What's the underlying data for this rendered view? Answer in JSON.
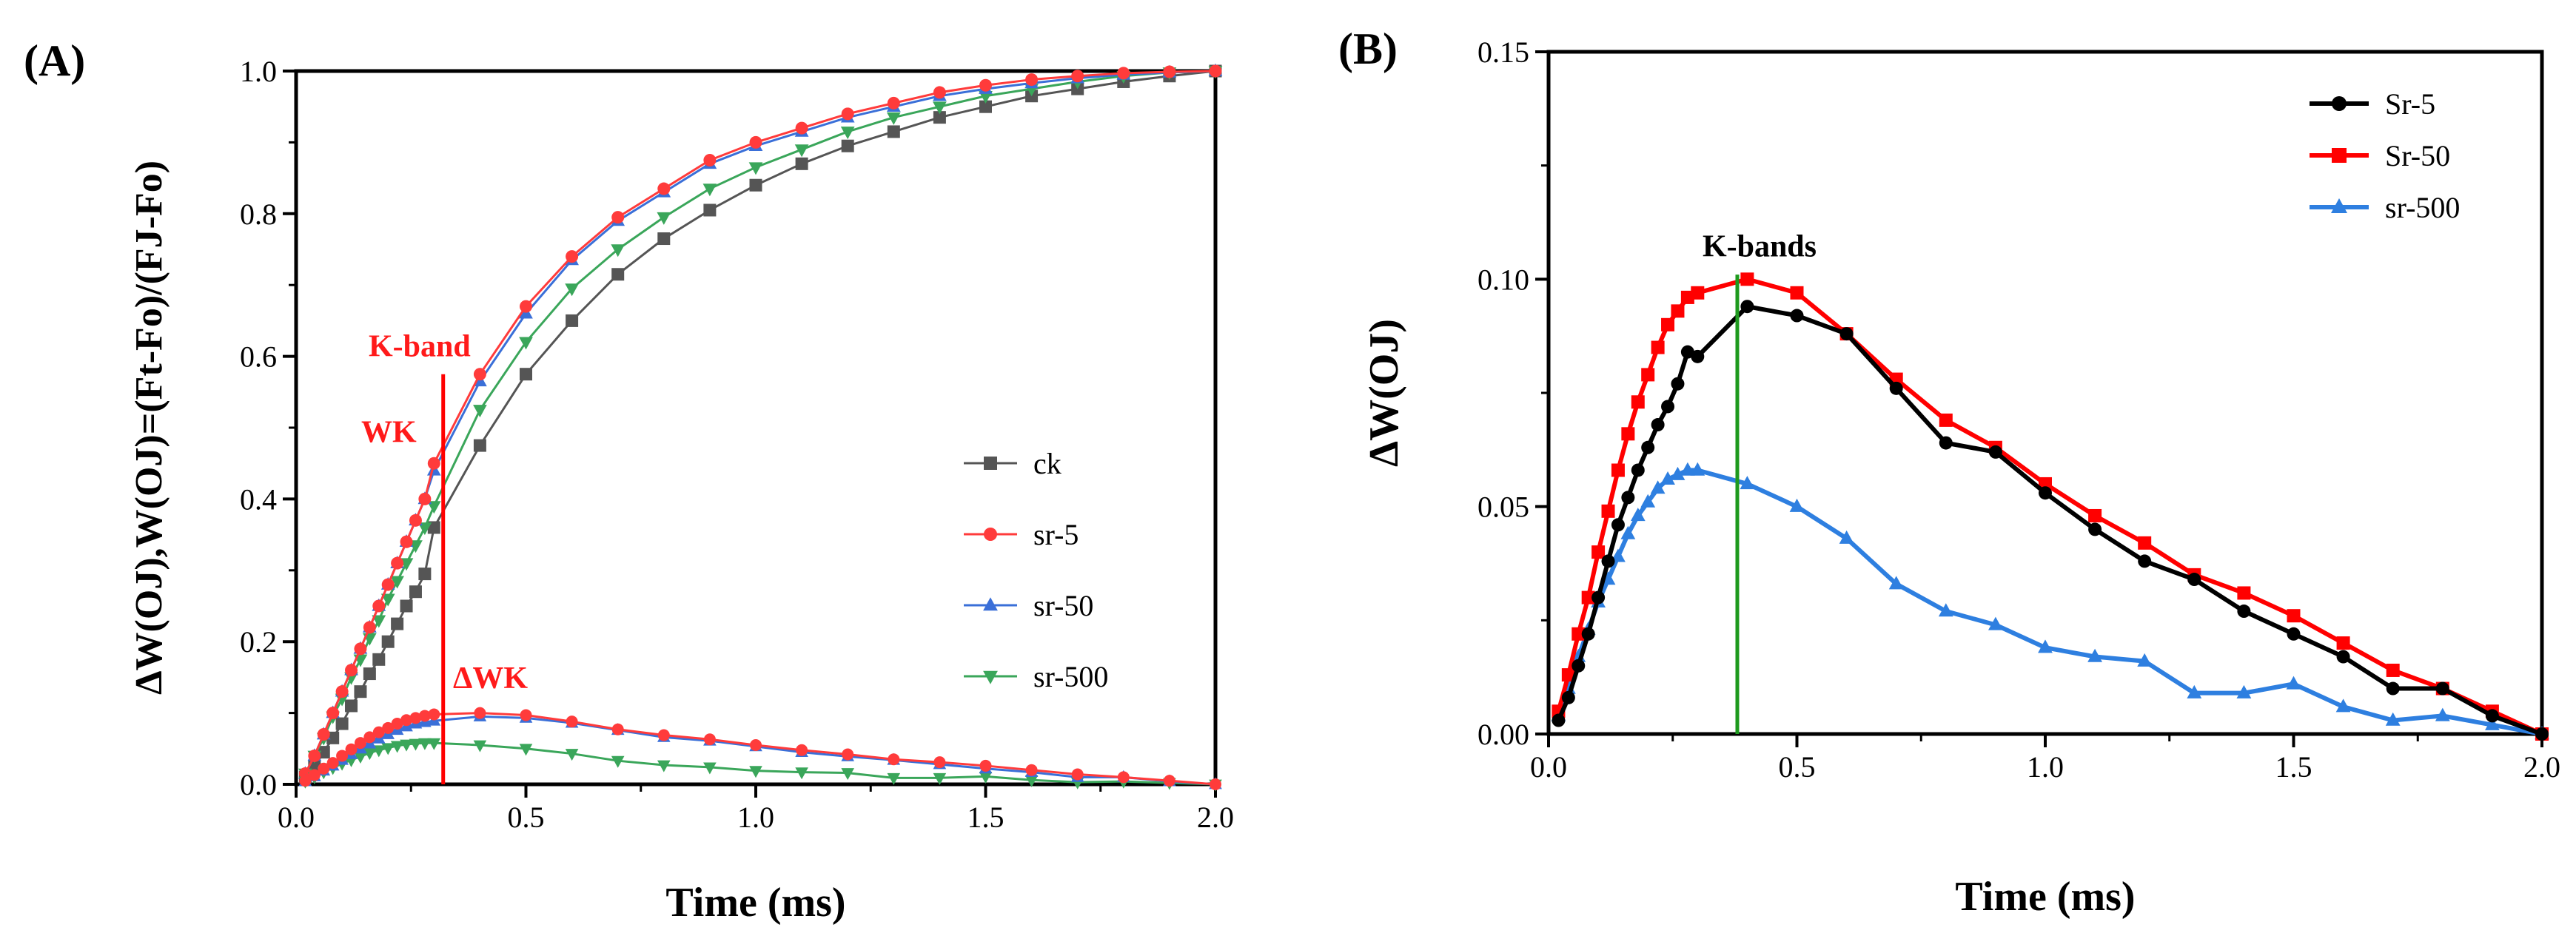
{
  "colors": {
    "ck": "#555555",
    "sr5_A": "#ff3b3b",
    "sr50_A": "#3a6fd8",
    "sr500_A": "#3aa65a",
    "Sr5_B": "#000000",
    "Sr50_B": "#ff0000",
    "sr500_B": "#2e7fe0",
    "kline_A": "#ff0000",
    "kline_B": "#1e9a1e"
  },
  "chart_data": [
    {
      "type": "line",
      "panel_label": "(A)",
      "xlabel": "Time (ms)",
      "ylabel": "ΔW(OJ),W(OJ)=(Ft-Fo)/(FJ-Fo)",
      "xlim": [
        0,
        2.0
      ],
      "ylim": [
        0,
        1.0
      ],
      "xticks": [
        "0.0",
        "0.5",
        "1.0",
        "1.5",
        "2.0"
      ],
      "yticks": [
        "0.0",
        "0.2",
        "0.4",
        "0.6",
        "0.8",
        "1.0"
      ],
      "xtick_values": [
        0,
        0.5,
        1.0,
        1.5,
        2.0
      ],
      "ytick_values": [
        0,
        0.2,
        0.4,
        0.6,
        0.8,
        1.0
      ],
      "legend_position": "center-right",
      "annotations": {
        "k_band_label": "K-band",
        "wk_label": "WK",
        "dwk_label": "ΔWK",
        "k_band_time": 0.32
      },
      "x": [
        0.02,
        0.04,
        0.06,
        0.08,
        0.1,
        0.12,
        0.14,
        0.16,
        0.18,
        0.2,
        0.22,
        0.24,
        0.26,
        0.28,
        0.3,
        0.4,
        0.5,
        0.6,
        0.7,
        0.8,
        0.9,
        1.0,
        1.1,
        1.2,
        1.3,
        1.4,
        1.5,
        1.6,
        1.7,
        1.8,
        1.9,
        2.0
      ],
      "series": [
        {
          "name": "ck",
          "key": "ck",
          "marker": "square",
          "values": [
            0.01,
            0.025,
            0.045,
            0.065,
            0.085,
            0.11,
            0.13,
            0.155,
            0.175,
            0.2,
            0.225,
            0.25,
            0.27,
            0.295,
            0.36,
            0.475,
            0.575,
            0.65,
            0.715,
            0.765,
            0.805,
            0.84,
            0.87,
            0.895,
            0.915,
            0.935,
            0.95,
            0.965,
            0.975,
            0.985,
            0.993,
            1.0
          ]
        },
        {
          "name": "sr-5",
          "key": "sr5_A",
          "marker": "circle",
          "values": [
            0.015,
            0.04,
            0.07,
            0.1,
            0.13,
            0.16,
            0.19,
            0.22,
            0.25,
            0.28,
            0.31,
            0.34,
            0.37,
            0.4,
            0.45,
            0.575,
            0.67,
            0.74,
            0.795,
            0.835,
            0.875,
            0.9,
            0.92,
            0.94,
            0.955,
            0.97,
            0.98,
            0.988,
            0.993,
            0.997,
            0.999,
            1.0
          ]
        },
        {
          "name": "sr-50",
          "key": "sr50_A",
          "marker": "triangle-up",
          "values": [
            0.015,
            0.04,
            0.07,
            0.1,
            0.13,
            0.16,
            0.19,
            0.22,
            0.25,
            0.28,
            0.31,
            0.34,
            0.37,
            0.4,
            0.44,
            0.565,
            0.66,
            0.735,
            0.79,
            0.83,
            0.87,
            0.895,
            0.915,
            0.935,
            0.95,
            0.965,
            0.975,
            0.983,
            0.99,
            0.995,
            0.998,
            1.0
          ]
        },
        {
          "name": "sr-500",
          "key": "sr500_A",
          "marker": "triangle-down",
          "values": [
            0.015,
            0.04,
            0.065,
            0.095,
            0.12,
            0.15,
            0.175,
            0.205,
            0.23,
            0.26,
            0.285,
            0.31,
            0.335,
            0.36,
            0.39,
            0.525,
            0.62,
            0.695,
            0.75,
            0.795,
            0.835,
            0.865,
            0.89,
            0.915,
            0.935,
            0.95,
            0.965,
            0.975,
            0.985,
            0.993,
            0.998,
            1.0
          ]
        }
      ],
      "delta_x": [
        0.02,
        0.04,
        0.06,
        0.08,
        0.1,
        0.12,
        0.14,
        0.16,
        0.18,
        0.2,
        0.22,
        0.24,
        0.26,
        0.28,
        0.3,
        0.4,
        0.5,
        0.6,
        0.7,
        0.8,
        0.9,
        1.0,
        1.1,
        1.2,
        1.3,
        1.4,
        1.5,
        1.6,
        1.7,
        1.8,
        1.9,
        2.0
      ],
      "delta_series": [
        {
          "name": "sr-5",
          "key": "sr5_A",
          "marker": "circle",
          "values": [
            0.005,
            0.013,
            0.022,
            0.03,
            0.04,
            0.049,
            0.058,
            0.066,
            0.073,
            0.079,
            0.085,
            0.09,
            0.093,
            0.096,
            0.098,
            0.1,
            0.097,
            0.088,
            0.077,
            0.069,
            0.063,
            0.055,
            0.048,
            0.042,
            0.035,
            0.031,
            0.026,
            0.02,
            0.014,
            0.01,
            0.005,
            0.0
          ]
        },
        {
          "name": "sr-50",
          "key": "sr50_A",
          "marker": "triangle-up",
          "values": [
            0.004,
            0.011,
            0.019,
            0.026,
            0.034,
            0.042,
            0.05,
            0.057,
            0.064,
            0.07,
            0.076,
            0.081,
            0.085,
            0.087,
            0.089,
            0.095,
            0.093,
            0.086,
            0.076,
            0.066,
            0.061,
            0.053,
            0.045,
            0.039,
            0.034,
            0.028,
            0.022,
            0.017,
            0.01,
            0.01,
            0.004,
            0.0
          ]
        },
        {
          "name": "sr-500",
          "key": "sr500_A",
          "marker": "triangle-down",
          "values": [
            0.004,
            0.01,
            0.017,
            0.023,
            0.029,
            0.034,
            0.039,
            0.044,
            0.048,
            0.051,
            0.054,
            0.056,
            0.057,
            0.058,
            0.058,
            0.055,
            0.05,
            0.043,
            0.033,
            0.027,
            0.024,
            0.019,
            0.017,
            0.016,
            0.009,
            0.009,
            0.011,
            0.006,
            0.003,
            0.004,
            0.002,
            0.0
          ]
        }
      ]
    },
    {
      "type": "line",
      "panel_label": "(B)",
      "xlabel": "Time (ms)",
      "ylabel": "ΔW(OJ)",
      "xlim": [
        0,
        2.0
      ],
      "ylim": [
        0,
        0.15
      ],
      "xticks": [
        "0.0",
        "0.5",
        "1.0",
        "1.5",
        "2.0"
      ],
      "yticks": [
        "0.00",
        "0.05",
        "0.10",
        "0.15"
      ],
      "xtick_values": [
        0,
        0.5,
        1.0,
        1.5,
        2.0
      ],
      "ytick_values": [
        0,
        0.05,
        0.1,
        0.15
      ],
      "legend_position": "top-right",
      "annotations": {
        "k_bands_label": "K-bands",
        "k_band_time": 0.38
      },
      "series": [
        {
          "name": "Sr-5",
          "key": "Sr5_B",
          "marker": "circle",
          "x": [
            0.02,
            0.04,
            0.06,
            0.08,
            0.1,
            0.12,
            0.14,
            0.16,
            0.18,
            0.2,
            0.22,
            0.24,
            0.26,
            0.28,
            0.3,
            0.4,
            0.5,
            0.6,
            0.7,
            0.8,
            0.9,
            1.0,
            1.1,
            1.2,
            1.3,
            1.4,
            1.5,
            1.6,
            1.7,
            1.8,
            1.9,
            2.0
          ],
          "values": [
            0.003,
            0.008,
            0.015,
            0.022,
            0.03,
            0.038,
            0.046,
            0.052,
            0.058,
            0.063,
            0.068,
            0.072,
            0.077,
            0.084,
            0.083,
            0.094,
            0.092,
            0.088,
            0.076,
            0.064,
            0.062,
            0.053,
            0.045,
            0.038,
            0.034,
            0.027,
            0.022,
            0.017,
            0.01,
            0.01,
            0.004,
            0.0
          ]
        },
        {
          "name": "Sr-50",
          "key": "Sr50_B",
          "marker": "square",
          "x": [
            0.02,
            0.04,
            0.06,
            0.08,
            0.1,
            0.12,
            0.14,
            0.16,
            0.18,
            0.2,
            0.22,
            0.24,
            0.26,
            0.28,
            0.3,
            0.4,
            0.5,
            0.6,
            0.7,
            0.8,
            0.9,
            1.0,
            1.1,
            1.2,
            1.3,
            1.4,
            1.5,
            1.6,
            1.7,
            1.8,
            1.9,
            2.0
          ],
          "values": [
            0.005,
            0.013,
            0.022,
            0.03,
            0.04,
            0.049,
            0.058,
            0.066,
            0.073,
            0.079,
            0.085,
            0.09,
            0.093,
            0.096,
            0.097,
            0.1,
            0.097,
            0.088,
            0.078,
            0.069,
            0.063,
            0.055,
            0.048,
            0.042,
            0.035,
            0.031,
            0.026,
            0.02,
            0.014,
            0.01,
            0.005,
            0.0
          ]
        },
        {
          "name": "sr-500",
          "key": "sr500_B",
          "marker": "triangle-up",
          "x": [
            0.02,
            0.04,
            0.06,
            0.08,
            0.1,
            0.12,
            0.14,
            0.16,
            0.18,
            0.2,
            0.22,
            0.24,
            0.26,
            0.28,
            0.3,
            0.4,
            0.5,
            0.6,
            0.7,
            0.8,
            0.9,
            1.0,
            1.1,
            1.2,
            1.3,
            1.4,
            1.5,
            1.6,
            1.7,
            1.8,
            1.9,
            2.0
          ],
          "values": [
            0.004,
            0.01,
            0.017,
            0.023,
            0.029,
            0.034,
            0.039,
            0.044,
            0.048,
            0.051,
            0.054,
            0.056,
            0.057,
            0.058,
            0.058,
            0.055,
            0.05,
            0.043,
            0.033,
            0.027,
            0.024,
            0.019,
            0.017,
            0.016,
            0.009,
            0.009,
            0.011,
            0.006,
            0.003,
            0.004,
            0.002,
            0.0
          ]
        }
      ]
    }
  ]
}
